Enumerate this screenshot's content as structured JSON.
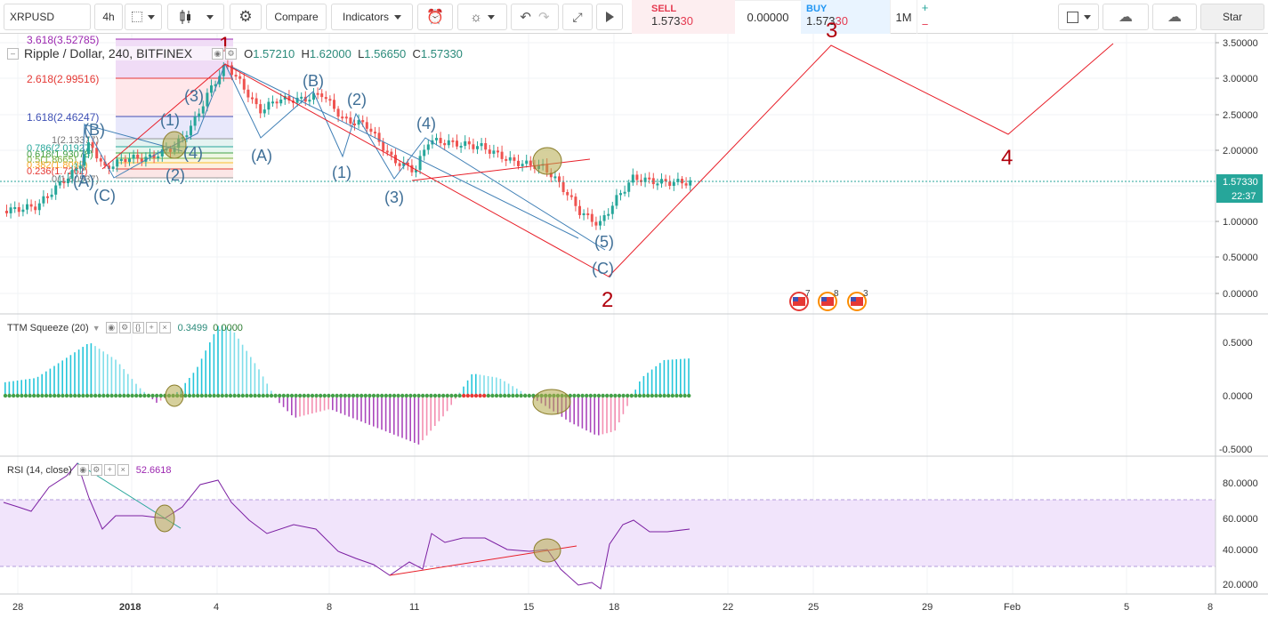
{
  "toolbar": {
    "symbol": "XRPUSD",
    "interval": "4h",
    "compare_label": "Compare",
    "indicators_label": "Indicators",
    "star_label": "Star"
  },
  "quote": {
    "sell_label": "SELL",
    "sell_main": "1.573",
    "sell_tail": "30",
    "spread": "0.00000",
    "buy_label": "BUY",
    "buy_main": "1.573",
    "buy_tail": "30",
    "qty": "1M",
    "plus": "+",
    "minus": "−"
  },
  "legend": {
    "title": "Ripple / Dollar, 240, BITFINEX",
    "o_label": "O",
    "o_value": "1.57210",
    "h_label": "H",
    "h_value": "1.62000",
    "l_label": "L",
    "l_value": "1.56650",
    "c_label": "C",
    "c_value": "1.57330"
  },
  "price_axis": {
    "ticks": [
      "3.50000",
      "3.00000",
      "2.50000",
      "2.00000",
      "1.50000",
      "1.00000",
      "0.50000",
      "0.00000"
    ],
    "current_price": "1.57330",
    "countdown": "22:37"
  },
  "fib_levels": [
    "3.618(3.52785)",
    "2.618(2.99516)",
    "1.618(2.46247)",
    "1(2.13377)",
    "0.786(2.01927)",
    "0.618(1.93078)",
    "0.5(1.8665)",
    "0.382(1.8039)",
    "0.236(1.7262)",
    "0(1.60537)"
  ],
  "wave_labels": {
    "main": [
      "1",
      "2",
      "3",
      "4"
    ],
    "sub": [
      "(A)",
      "(B)",
      "(C)",
      "(1)",
      "(2)",
      "(3)",
      "(4)",
      "(5)"
    ]
  },
  "events": [
    {
      "icon": "us-flag-icon",
      "count": "7"
    },
    {
      "icon": "us-flag-icon",
      "count": "8"
    },
    {
      "icon": "us-flag-icon",
      "count": "3"
    }
  ],
  "ttm": {
    "label": "TTM Squeeze (20)",
    "value1": "0.3499",
    "value2": "0.0000",
    "ticks": [
      "0.5000",
      "0.0000",
      "-0.5000"
    ]
  },
  "rsi": {
    "label": "RSI (14, close)",
    "value": "52.6618",
    "ticks": [
      "80.0000",
      "60.0000",
      "40.0000",
      "20.0000"
    ]
  },
  "time_axis": {
    "ticks": [
      "28",
      "2018",
      "4",
      "8",
      "11",
      "15",
      "18",
      "22",
      "25",
      "29",
      "Feb",
      "5",
      "8"
    ]
  },
  "colors": {
    "up": "#26a69a",
    "down": "#ef5350",
    "wave_red": "#e8202a",
    "wave_blue": "#3f7fb5",
    "rsi_line": "#7b1fa2",
    "rsi_band": "#f1e4fb"
  }
}
